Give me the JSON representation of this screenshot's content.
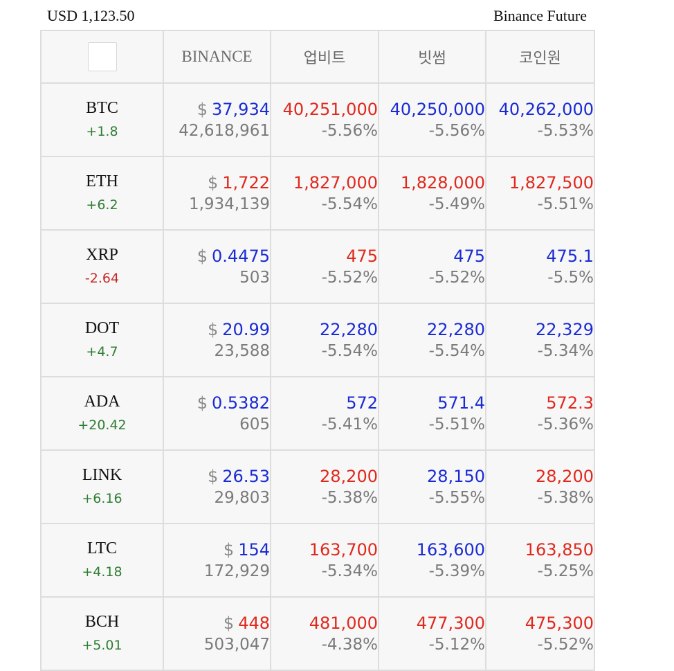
{
  "header": {
    "usd_rate": "USD 1,123.50",
    "source": "Binance Future"
  },
  "columns": [
    "BINANCE",
    "업비트",
    "빗썸",
    "코인원"
  ],
  "colors": {
    "up_blue": "#1a2bd4",
    "down_red": "#e0281d",
    "positive_green": "#2e7d32",
    "negative_red": "#c62828",
    "muted": "#7a7a7a"
  },
  "rows": [
    {
      "symbol": "BTC",
      "change": "+1.8",
      "binance": {
        "dollar": "$",
        "usd": "37,934",
        "krw": "42,618,961"
      },
      "upbit": {
        "price": "40,251,000",
        "premium": "-5.56%"
      },
      "bithumb": {
        "price": "40,250,000",
        "premium": "-5.56%"
      },
      "coinone": {
        "price": "40,262,000",
        "premium": "-5.53%"
      }
    },
    {
      "symbol": "ETH",
      "change": "+6.2",
      "binance": {
        "dollar": "$",
        "usd": "1,722",
        "krw": "1,934,139"
      },
      "upbit": {
        "price": "1,827,000",
        "premium": "-5.54%"
      },
      "bithumb": {
        "price": "1,828,000",
        "premium": "-5.49%"
      },
      "coinone": {
        "price": "1,827,500",
        "premium": "-5.51%"
      }
    },
    {
      "symbol": "XRP",
      "change": "-2.64",
      "binance": {
        "dollar": "$",
        "usd": "0.4475",
        "krw": "503"
      },
      "upbit": {
        "price": "475",
        "premium": "-5.52%"
      },
      "bithumb": {
        "price": "475",
        "premium": "-5.52%"
      },
      "coinone": {
        "price": "475.1",
        "premium": "-5.5%"
      }
    },
    {
      "symbol": "DOT",
      "change": "+4.7",
      "binance": {
        "dollar": "$",
        "usd": "20.99",
        "krw": "23,588"
      },
      "upbit": {
        "price": "22,280",
        "premium": "-5.54%"
      },
      "bithumb": {
        "price": "22,280",
        "premium": "-5.54%"
      },
      "coinone": {
        "price": "22,329",
        "premium": "-5.34%"
      }
    },
    {
      "symbol": "ADA",
      "change": "+20.42",
      "binance": {
        "dollar": "$",
        "usd": "0.5382",
        "krw": "605"
      },
      "upbit": {
        "price": "572",
        "premium": "-5.41%"
      },
      "bithumb": {
        "price": "571.4",
        "premium": "-5.51%"
      },
      "coinone": {
        "price": "572.3",
        "premium": "-5.36%"
      }
    },
    {
      "symbol": "LINK",
      "change": "+6.16",
      "binance": {
        "dollar": "$",
        "usd": "26.53",
        "krw": "29,803"
      },
      "upbit": {
        "price": "28,200",
        "premium": "-5.38%"
      },
      "bithumb": {
        "price": "28,150",
        "premium": "-5.55%"
      },
      "coinone": {
        "price": "28,200",
        "premium": "-5.38%"
      }
    },
    {
      "symbol": "LTC",
      "change": "+4.18",
      "binance": {
        "dollar": "$",
        "usd": "154",
        "krw": "172,929"
      },
      "upbit": {
        "price": "163,700",
        "premium": "-5.34%"
      },
      "bithumb": {
        "price": "163,600",
        "premium": "-5.39%"
      },
      "coinone": {
        "price": "163,850",
        "premium": "-5.25%"
      }
    },
    {
      "symbol": "BCH",
      "change": "+5.01",
      "binance": {
        "dollar": "$",
        "usd": "448",
        "krw": "503,047"
      },
      "upbit": {
        "price": "481,000",
        "premium": "-4.38%"
      },
      "bithumb": {
        "price": "477,300",
        "premium": "-5.12%"
      },
      "coinone": {
        "price": "475,300",
        "premium": "-5.52%"
      }
    }
  ]
}
